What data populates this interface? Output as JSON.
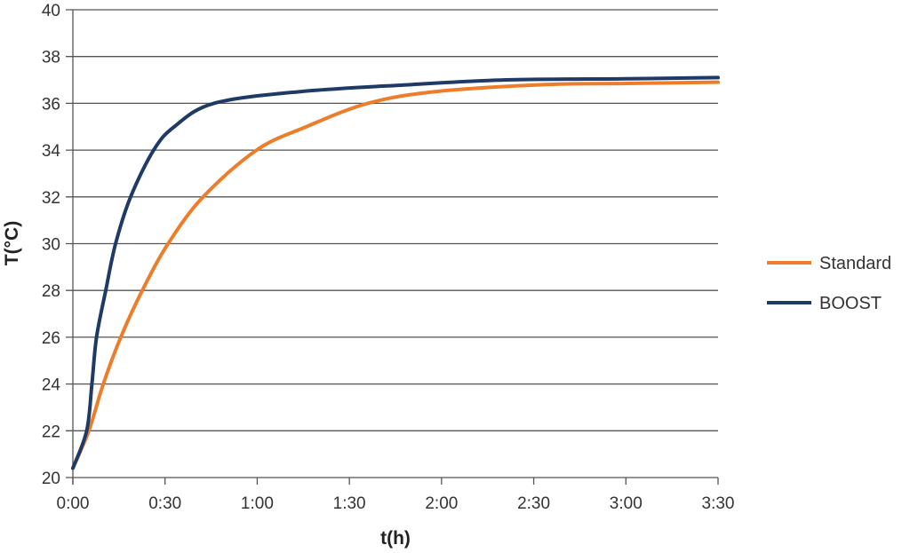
{
  "chart_data": {
    "type": "line",
    "title": "",
    "xlabel": "t(h)",
    "ylabel": "T(°C)",
    "x_unit": "minutes",
    "xlim": [
      0,
      210
    ],
    "ylim": [
      20,
      40
    ],
    "x_ticks": [
      0,
      30,
      60,
      90,
      120,
      150,
      180,
      210
    ],
    "x_tick_labels": [
      "0:00",
      "0:30",
      "1:00",
      "1:30",
      "2:00",
      "2:30",
      "3:00",
      "3:30"
    ],
    "y_ticks": [
      20,
      22,
      24,
      26,
      28,
      30,
      32,
      34,
      36,
      38,
      40
    ],
    "grid": true,
    "legend_position": "right",
    "series": [
      {
        "name": "Standard",
        "color": "#ee7d2b",
        "x": [
          0,
          5.2,
          9.9,
          15.6,
          22.6,
          31,
          42.4,
          59.8,
          76,
          96,
          118,
          153,
          180,
          210
        ],
        "y": [
          20.4,
          22,
          24,
          26,
          28,
          30,
          32,
          34,
          35,
          36,
          36.5,
          36.8,
          36.85,
          36.9
        ]
      },
      {
        "name": "BOOST",
        "color": "#1f3a66",
        "x": [
          0,
          4.5,
          6.2,
          7.7,
          10.7,
          13.9,
          18.8,
          26.3,
          33,
          45.9,
          74,
          110,
          141,
          180,
          210
        ],
        "y": [
          20.4,
          22,
          24,
          26,
          28,
          30,
          32,
          34,
          35,
          36,
          36.5,
          36.8,
          37,
          37.05,
          37.1
        ]
      }
    ]
  }
}
